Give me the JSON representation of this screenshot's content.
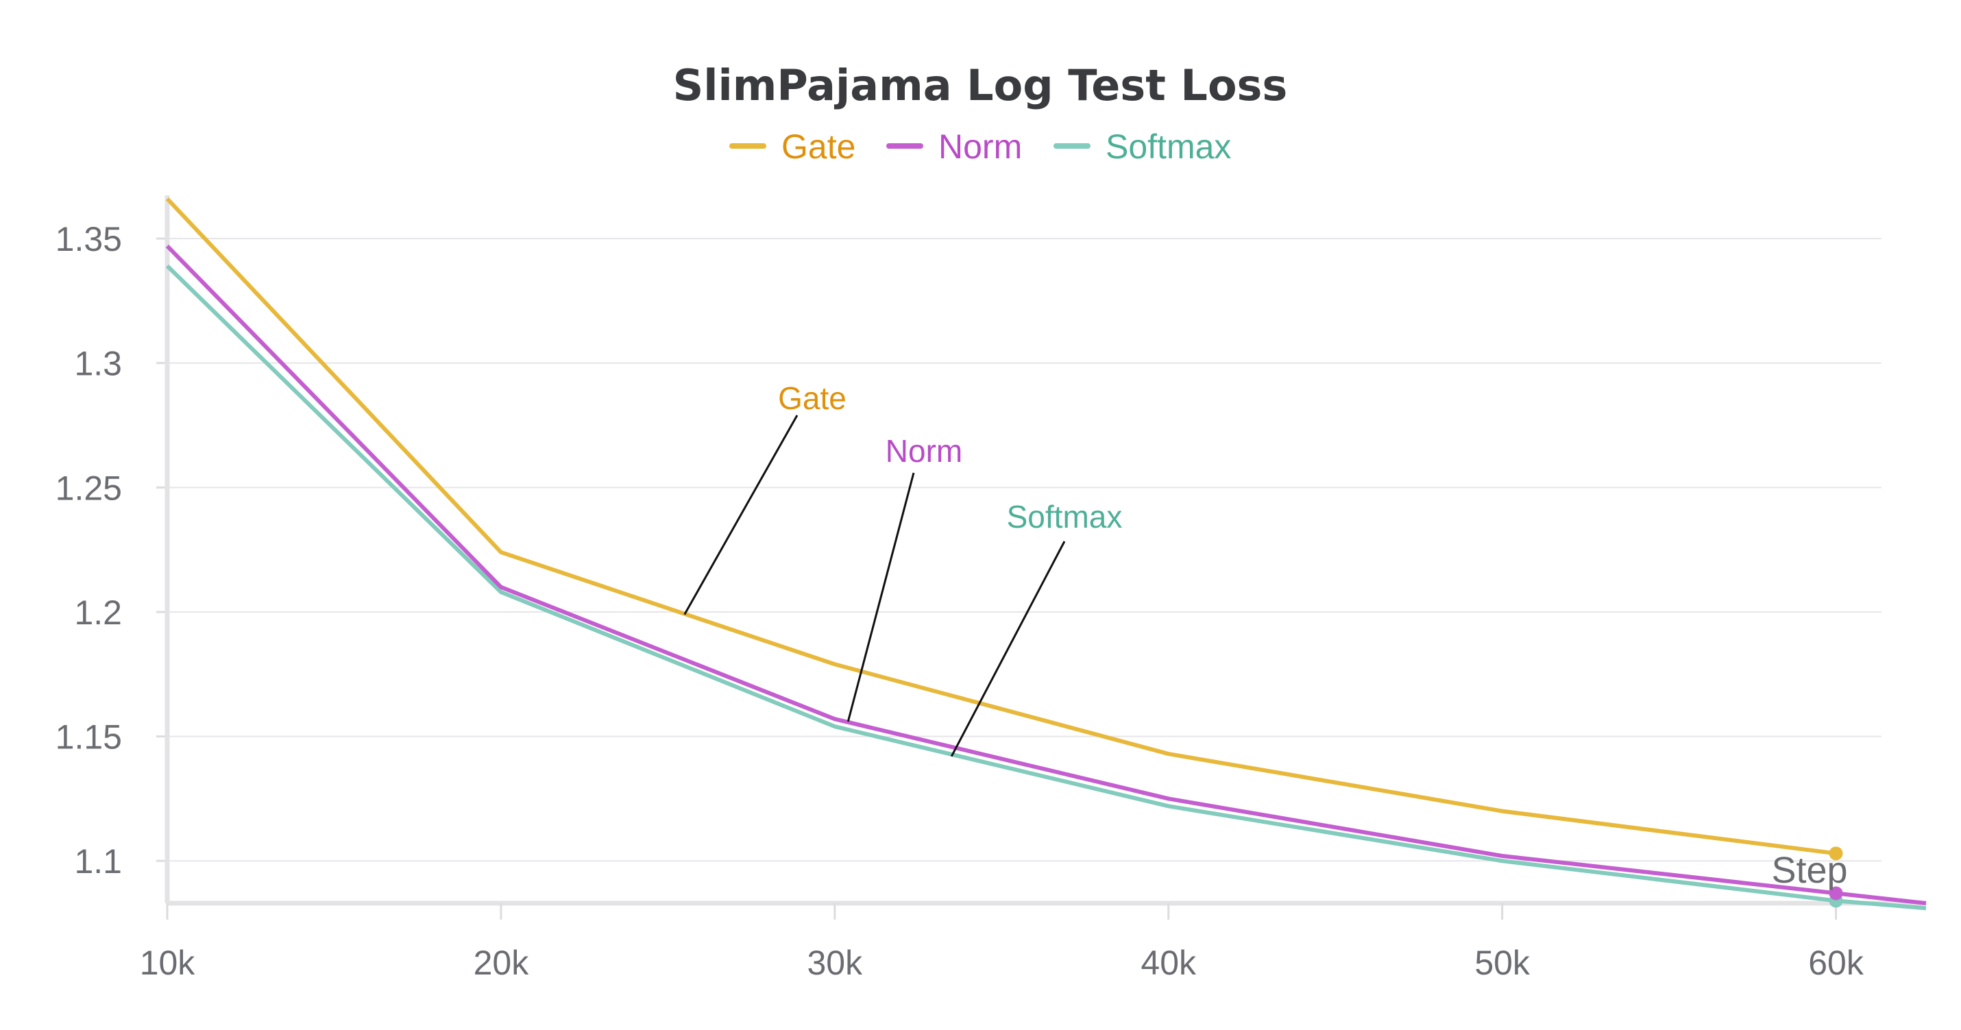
{
  "chart_data": {
    "type": "line",
    "title": "SlimPajama Log Test Loss",
    "xlabel": "Step",
    "ylabel": "",
    "x": [
      10000,
      20000,
      30000,
      40000,
      50000,
      60000,
      62700
    ],
    "x_tick_values": [
      10000,
      20000,
      30000,
      40000,
      50000,
      60000
    ],
    "x_tick_labels": [
      "10k",
      "20k",
      "30k",
      "40k",
      "50k",
      "60k"
    ],
    "y_tick_values": [
      1.1,
      1.15,
      1.2,
      1.25,
      1.3,
      1.35
    ],
    "y_tick_labels": [
      "1.1",
      "1.15",
      "1.2",
      "1.25",
      "1.3",
      "1.35"
    ],
    "xlim": [
      10000,
      62700
    ],
    "ylim": [
      1.083,
      1.366
    ],
    "grid": true,
    "legend_position": "top-center",
    "series": [
      {
        "name": "Gate",
        "color": "#e8b83a",
        "label_color": "#e0910c",
        "values": [
          1.366,
          1.224,
          1.179,
          1.143,
          1.12,
          1.103,
          null
        ],
        "annotation": "Gate",
        "annotation_point": [
          25500,
          1.199
        ]
      },
      {
        "name": "Norm",
        "color": "#c45ed0",
        "label_color": "#b84bc7",
        "values": [
          1.347,
          1.21,
          1.157,
          1.125,
          1.102,
          1.087,
          1.083
        ],
        "annotation": "Norm",
        "annotation_point": [
          30400,
          1.156
        ]
      },
      {
        "name": "Softmax",
        "color": "#82cbbd",
        "label_color": "#4daf96",
        "values": [
          1.339,
          1.208,
          1.154,
          1.122,
          1.1,
          1.084,
          1.081
        ],
        "annotation": "Softmax",
        "annotation_point": [
          33500,
          1.142
        ]
      }
    ]
  }
}
